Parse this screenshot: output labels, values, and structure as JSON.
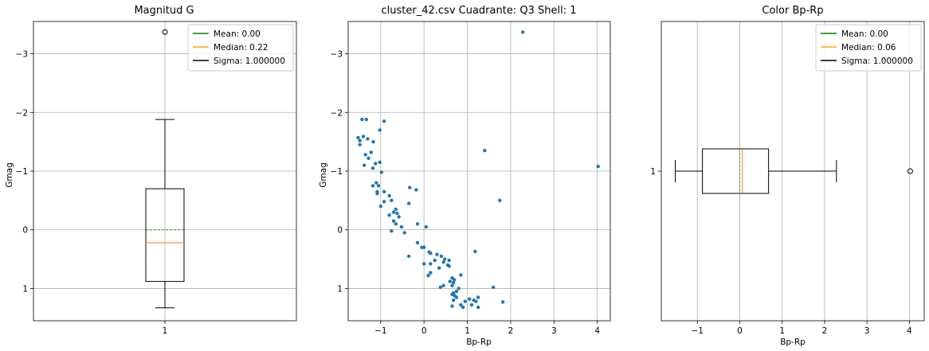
{
  "chart_data": [
    {
      "type": "boxplot",
      "title": "Magnitud G",
      "ylabel": "Gmag",
      "xlabel": "",
      "orientation": "vertical",
      "y_inverted": true,
      "ylim": [
        1.55,
        -3.55
      ],
      "yticks": [
        1,
        0,
        -1,
        -2,
        -3
      ],
      "ytick_labels": [
        "1",
        "0",
        "−1",
        "−2",
        "−3"
      ],
      "xticks": [
        1
      ],
      "xtick_labels": [
        "1"
      ],
      "grid": true,
      "legend_position": "top-right",
      "box": {
        "q1": -0.7,
        "median": 0.22,
        "q3": 0.88,
        "whisker_low": -1.88,
        "whisker_high": 1.33,
        "mean": 0.0
      },
      "outliers": [
        -3.37
      ],
      "legend": [
        {
          "label": "Mean: 0.00",
          "color": "#008000"
        },
        {
          "label": "Median: 0.22",
          "color": "#ffa500"
        },
        {
          "label": "Sigma: 1.000000",
          "color": "#000000"
        }
      ]
    },
    {
      "type": "scatter",
      "title": "cluster_42.csv Cuadrante: Q3 Shell: 1",
      "xlabel": "Bp-Rp",
      "ylabel": "Gmag",
      "y_inverted": true,
      "xlim": [
        -1.75,
        4.3
      ],
      "ylim": [
        1.55,
        -3.55
      ],
      "xticks": [
        -1,
        0,
        1,
        2,
        3,
        4
      ],
      "xtick_labels": [
        "−1",
        "0",
        "1",
        "2",
        "3",
        "4"
      ],
      "yticks": [
        1,
        0,
        -1,
        -2,
        -3
      ],
      "ytick_labels": [
        "1",
        "0",
        "−1",
        "−2",
        "−3"
      ],
      "grid": true,
      "color": "#1f77b4",
      "points": [
        [
          2.28,
          -3.37
        ],
        [
          -1.43,
          -1.88
        ],
        [
          -1.33,
          -1.88
        ],
        [
          -0.92,
          -1.85
        ],
        [
          -1.02,
          -1.7
        ],
        [
          -1.52,
          -1.57
        ],
        [
          -1.48,
          -1.52
        ],
        [
          -1.4,
          -1.59
        ],
        [
          -1.3,
          -1.55
        ],
        [
          -1.17,
          -1.5
        ],
        [
          -1.48,
          -1.45
        ],
        [
          -1.22,
          -1.32
        ],
        [
          -1.35,
          -1.28
        ],
        [
          -1.28,
          -1.22
        ],
        [
          -1.02,
          -1.15
        ],
        [
          -1.12,
          -1.13
        ],
        [
          -1.38,
          -1.1
        ],
        [
          -1.18,
          -1.05
        ],
        [
          -0.98,
          -0.98
        ],
        [
          -1.1,
          -0.8
        ],
        [
          -1.18,
          -0.75
        ],
        [
          -1.05,
          -0.75
        ],
        [
          -1.08,
          -0.65
        ],
        [
          -1.08,
          -0.62
        ],
        [
          -0.92,
          -0.65
        ],
        [
          -0.8,
          -0.58
        ],
        [
          -0.33,
          -0.72
        ],
        [
          -0.18,
          -0.68
        ],
        [
          -0.75,
          -0.5
        ],
        [
          -0.92,
          -0.48
        ],
        [
          -1.0,
          -0.4
        ],
        [
          -0.35,
          -0.45
        ],
        [
          -0.65,
          -0.35
        ],
        [
          -0.7,
          -0.3
        ],
        [
          -0.8,
          -0.25
        ],
        [
          -0.62,
          -0.28
        ],
        [
          -0.58,
          -0.22
        ],
        [
          -0.7,
          -0.15
        ],
        [
          -0.65,
          -0.1
        ],
        [
          -0.52,
          -0.05
        ],
        [
          -0.15,
          -0.1
        ],
        [
          0.05,
          -0.05
        ],
        [
          -0.75,
          0.02
        ],
        [
          -0.45,
          0.05
        ],
        [
          -0.15,
          0.22
        ],
        [
          -0.05,
          0.3
        ],
        [
          0.0,
          0.3
        ],
        [
          0.12,
          0.38
        ],
        [
          0.15,
          0.4
        ],
        [
          -0.35,
          0.45
        ],
        [
          0.3,
          0.42
        ],
        [
          0.4,
          0.45
        ],
        [
          0.25,
          0.52
        ],
        [
          0.15,
          0.58
        ],
        [
          0.48,
          0.5
        ],
        [
          0.45,
          0.55
        ],
        [
          0.58,
          0.52
        ],
        [
          0.55,
          0.6
        ],
        [
          0.35,
          0.65
        ],
        [
          0.0,
          0.58
        ],
        [
          0.15,
          0.73
        ],
        [
          0.1,
          0.78
        ],
        [
          0.58,
          0.62
        ],
        [
          0.85,
          0.77
        ],
        [
          0.65,
          0.82
        ],
        [
          0.7,
          0.85
        ],
        [
          0.6,
          0.88
        ],
        [
          0.68,
          0.9
        ],
        [
          0.65,
          0.95
        ],
        [
          0.45,
          0.95
        ],
        [
          0.38,
          0.98
        ],
        [
          0.8,
          1.0
        ],
        [
          0.75,
          1.05
        ],
        [
          0.68,
          1.08
        ],
        [
          0.65,
          1.1
        ],
        [
          0.7,
          1.12
        ],
        [
          0.75,
          1.15
        ],
        [
          0.68,
          1.2
        ],
        [
          0.95,
          1.22
        ],
        [
          1.05,
          1.18
        ],
        [
          1.15,
          1.2
        ],
        [
          1.2,
          1.22
        ],
        [
          1.25,
          1.15
        ],
        [
          1.1,
          1.28
        ],
        [
          0.85,
          1.28
        ],
        [
          0.9,
          1.32
        ],
        [
          0.65,
          1.3
        ],
        [
          1.25,
          1.32
        ],
        [
          1.6,
          0.98
        ],
        [
          1.82,
          1.23
        ],
        [
          1.18,
          0.37
        ],
        [
          1.75,
          -0.5
        ],
        [
          1.4,
          -1.35
        ],
        [
          4.02,
          -1.08
        ]
      ]
    },
    {
      "type": "boxplot",
      "title": "Color Bp-Rp",
      "xlabel": "Bp-Rp",
      "ylabel": "",
      "orientation": "horizontal",
      "xlim": [
        -1.85,
        4.35
      ],
      "xticks": [
        -1,
        0,
        1,
        2,
        3,
        4
      ],
      "xtick_labels": [
        "−1",
        "0",
        "1",
        "2",
        "3",
        "4"
      ],
      "yticks": [
        1
      ],
      "ytick_labels": [
        "1"
      ],
      "grid": true,
      "legend_position": "top-right",
      "box": {
        "q1": -0.88,
        "median": 0.06,
        "q3": 0.68,
        "whisker_low": -1.52,
        "whisker_high": 2.28,
        "mean": 0.0
      },
      "outliers": [
        4.02
      ],
      "legend": [
        {
          "label": "Mean: 0.00",
          "color": "#008000"
        },
        {
          "label": "Median: 0.06",
          "color": "#ffa500"
        },
        {
          "label": "Sigma: 1.000000",
          "color": "#000000"
        }
      ]
    }
  ]
}
